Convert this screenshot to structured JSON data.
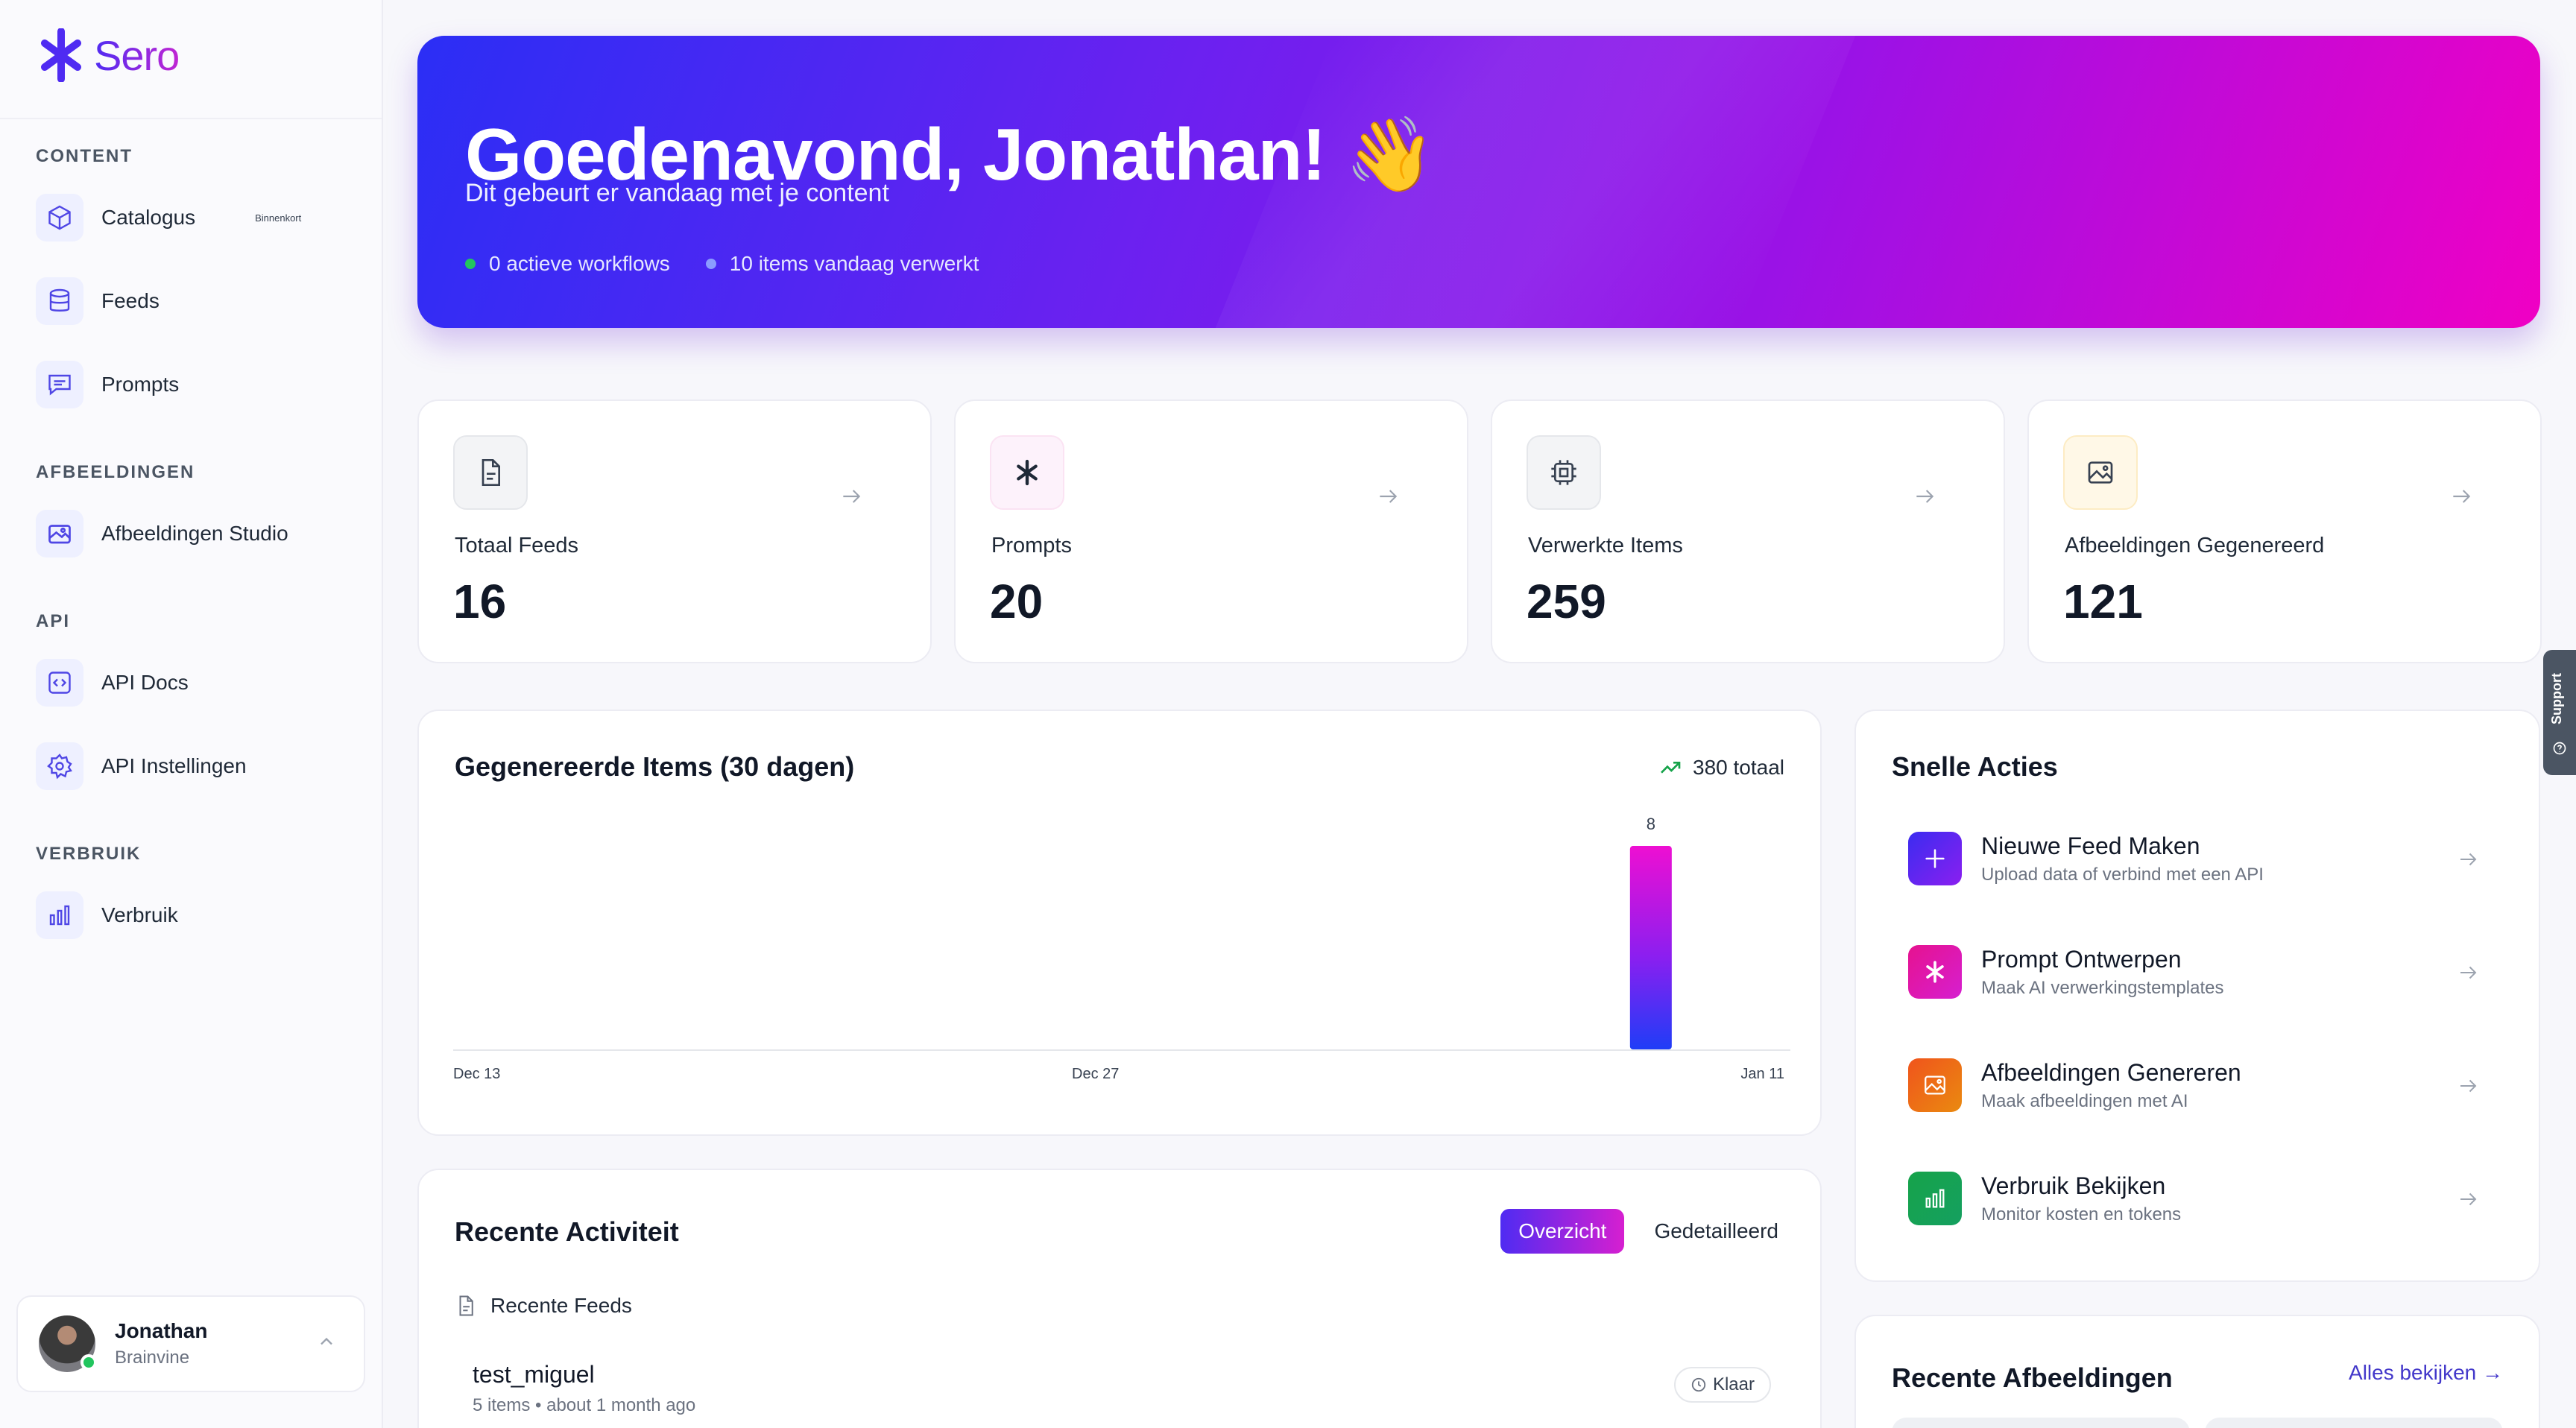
{
  "brand": {
    "name": "Sero"
  },
  "sidebar": {
    "sections": [
      {
        "title": "CONTENT",
        "items": [
          {
            "label": "Catalogus",
            "badge": "Binnenkort",
            "icon": "cube-icon"
          },
          {
            "label": "Feeds",
            "icon": "database-icon"
          },
          {
            "label": "Prompts",
            "icon": "message-icon"
          }
        ]
      },
      {
        "title": "AFBEELDINGEN",
        "items": [
          {
            "label": "Afbeeldingen Studio",
            "icon": "images-icon"
          }
        ]
      },
      {
        "title": "API",
        "items": [
          {
            "label": "API Docs",
            "icon": "code-icon"
          },
          {
            "label": "API Instellingen",
            "icon": "gear-icon"
          }
        ]
      },
      {
        "title": "VERBRUIK",
        "items": [
          {
            "label": "Verbruik",
            "icon": "bar-chart-icon"
          }
        ]
      }
    ],
    "user": {
      "name": "Jonathan",
      "org": "Brainvine",
      "online": true
    }
  },
  "hero": {
    "title": "Goedenavond, Jonathan! 👋",
    "subtitle": "Dit gebeurt er vandaag met je content",
    "stats": [
      {
        "text": "0 actieve workflows",
        "color": "#22c55e"
      },
      {
        "text": "10 items vandaag verwerkt",
        "color": "#8b9cff"
      }
    ]
  },
  "stats": [
    {
      "label": "Totaal Feeds",
      "value": "16",
      "icon": "document-icon",
      "bg": "#f3f4f6"
    },
    {
      "label": "Prompts",
      "value": "20",
      "icon": "asterisk-icon",
      "bg": "#fdf2fb"
    },
    {
      "label": "Verwerkte Items",
      "value": "259",
      "icon": "chip-icon",
      "bg": "#f3f4f6"
    },
    {
      "label": "Afbeeldingen Gegenereerd",
      "value": "121",
      "icon": "image-icon",
      "bg": "#fff8e7"
    }
  ],
  "chart_section": {
    "title": "Gegenereerde Items (30 dagen)",
    "total": "380 totaal"
  },
  "chart_data": {
    "type": "bar",
    "x_labels": [
      "Dec 13",
      "Dec 27",
      "Jan 11"
    ],
    "bars": [
      {
        "date": "Jan 8",
        "value": 8,
        "label": "8"
      }
    ],
    "ylim": [
      0,
      8.5
    ],
    "grid": false
  },
  "activity": {
    "title": "Recente Activiteit",
    "tabs": [
      "Overzicht",
      "Gedetailleerd"
    ],
    "subheading": "Recente Feeds",
    "feeds": [
      {
        "name": "test_miguel",
        "meta": "5 items • about 1 month ago",
        "status": "Klaar"
      }
    ]
  },
  "quick_actions": {
    "title": "Snelle Acties",
    "items": [
      {
        "title": "Nieuwe Feed Maken",
        "desc": "Upload data of verbind met een API",
        "icon": "plus-icon",
        "color": "#4f2bf2"
      },
      {
        "title": "Prompt Ontwerpen",
        "desc": "Maak AI verwerkingstemplates",
        "icon": "asterisk-icon",
        "color": "#e11d9d"
      },
      {
        "title": "Afbeeldingen Genereren",
        "desc": "Maak afbeeldingen met AI",
        "icon": "image-icon",
        "color": "#ea6a10"
      },
      {
        "title": "Verbruik Bekijken",
        "desc": "Monitor kosten en tokens",
        "icon": "bar-chart-icon",
        "color": "#16a34a"
      }
    ]
  },
  "recent_images": {
    "title": "Recente Afbeeldingen",
    "link": "Alles bekijken →"
  },
  "support": {
    "label": "Support"
  }
}
